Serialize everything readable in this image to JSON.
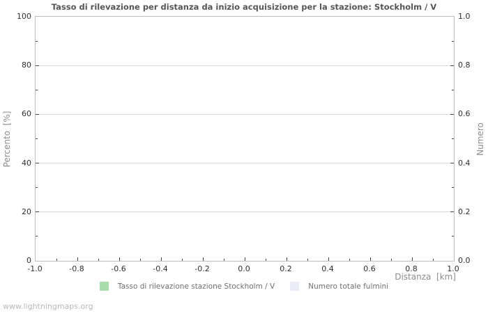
{
  "watermark": "www.lightningmaps.org",
  "colors": {
    "grid": "#d8d8d8",
    "plot_border": "#bdbdbd",
    "tick": "#444444",
    "title": "#555555",
    "tick_label": "#2f2f2f",
    "axis_label": "#8c8c8c",
    "legend_text": "#707070",
    "watermark": "#b8b8b8",
    "series_detection_rate": "#abdcab",
    "series_total_strokes": "#eaecf8",
    "background": "#ffffff"
  },
  "chart_data": {
    "type": "line",
    "title": "Tasso di rilevazione per distanza da inizio acquisizione per la stazione: Stockholm / V",
    "xlabel": "Distanza  [km]",
    "ylabel_left": "Percento  [%]",
    "ylabel_right": "Numero",
    "xlim": [
      -1.0,
      1.0
    ],
    "ylim_left": [
      0,
      100
    ],
    "ylim_right": [
      0.0,
      1.0
    ],
    "grid": "horizontal-major-only",
    "legend_position": "bottom-center",
    "x_ticks": {
      "major": [
        -1.0,
        -0.8,
        -0.6,
        -0.4,
        -0.2,
        0.0,
        0.2,
        0.4,
        0.6,
        0.8,
        1.0
      ],
      "minor": [
        -0.9,
        -0.7,
        -0.5,
        -0.3,
        -0.1,
        0.1,
        0.3,
        0.5,
        0.7,
        0.9
      ],
      "labels": [
        "-1.0",
        "-0.8",
        "-0.6",
        "-0.4",
        "-0.2",
        "0.0",
        "0.2",
        "0.4",
        "0.6",
        "0.8",
        "1.0"
      ]
    },
    "y_left_ticks": {
      "major": [
        0,
        20,
        40,
        60,
        80,
        100
      ],
      "minor": [
        10,
        30,
        50,
        70,
        90
      ],
      "labels": [
        "0",
        "20",
        "40",
        "60",
        "80",
        "100"
      ]
    },
    "y_right_ticks": {
      "major": [
        0.0,
        0.2,
        0.4,
        0.6,
        0.8,
        1.0
      ],
      "minor": [
        0.1,
        0.3,
        0.5,
        0.7,
        0.9
      ],
      "labels": [
        "0.0",
        "0.2",
        "0.4",
        "0.6",
        "0.8",
        "1.0"
      ]
    },
    "series": [
      {
        "name": "Tasso di rilevazione stazione Stockholm / V",
        "color": "#abdcab",
        "x": [],
        "values": []
      },
      {
        "name": "Numero totale fulmini",
        "color": "#eaecf8",
        "x": [],
        "values": []
      }
    ]
  }
}
